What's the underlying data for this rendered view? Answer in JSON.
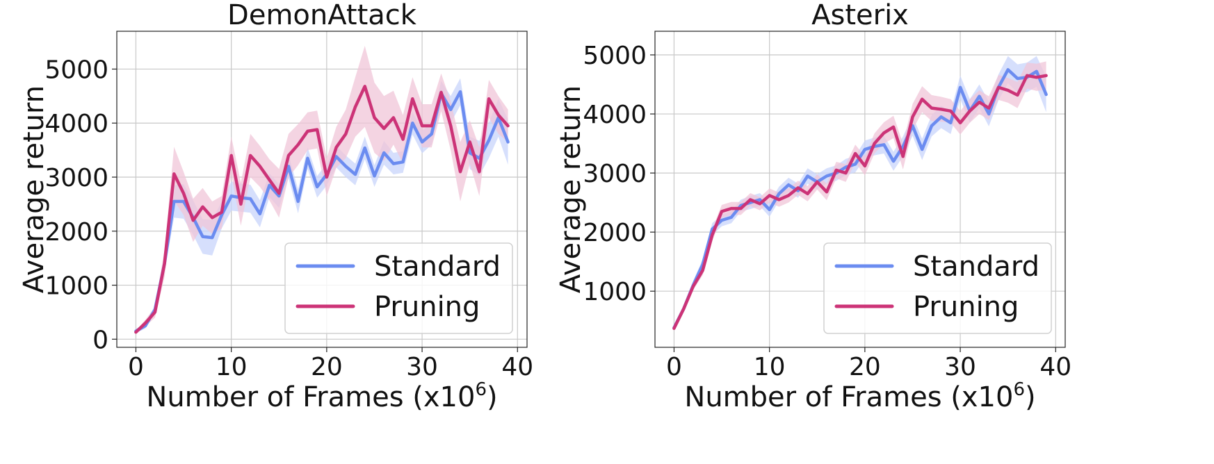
{
  "chart_data": [
    {
      "type": "line",
      "title": "DemonAttack",
      "xlabel": "Number of Frames (x10",
      "xlabel_sup": "6",
      "xlabel_end": ")",
      "ylabel": "Average return",
      "xlim": [
        -2,
        41
      ],
      "ylim": [
        -150,
        5700
      ],
      "xticks": [
        0,
        10,
        20,
        30,
        40
      ],
      "yticks": [
        0,
        1000,
        2000,
        3000,
        4000,
        5000
      ],
      "grid": true,
      "legend_position": "bottom-right",
      "x": [
        0,
        1,
        2,
        3,
        4,
        5,
        6,
        7,
        8,
        9,
        10,
        11,
        12,
        13,
        14,
        15,
        16,
        17,
        18,
        19,
        20,
        21,
        22,
        23,
        24,
        25,
        26,
        27,
        28,
        29,
        30,
        31,
        32,
        33,
        34,
        35,
        36,
        37,
        38,
        39
      ],
      "series": [
        {
          "name": "Standard",
          "color": "#6b8cf0",
          "band_color": "#c8d4fb",
          "values": [
            150,
            250,
            550,
            1400,
            2550,
            2550,
            2250,
            1900,
            1880,
            2300,
            2650,
            2620,
            2600,
            2320,
            2850,
            2650,
            3200,
            2550,
            3350,
            2820,
            3050,
            3380,
            3200,
            3050,
            3540,
            3020,
            3450,
            3250,
            3280,
            4000,
            3650,
            3800,
            4550,
            4250,
            4580,
            3450,
            3350,
            3680,
            4100,
            3650
          ],
          "band_half_width": [
            40,
            50,
            70,
            150,
            300,
            320,
            320,
            320,
            330,
            250,
            270,
            260,
            260,
            250,
            220,
            220,
            220,
            220,
            200,
            200,
            200,
            200,
            200,
            200,
            210,
            200,
            220,
            200,
            200,
            210,
            210,
            200,
            230,
            250,
            250,
            300,
            320,
            330,
            350,
            420
          ]
        },
        {
          "name": "Pruning",
          "color": "#cc3377",
          "band_color": "#f0c6d8",
          "values": [
            130,
            300,
            500,
            1400,
            3060,
            2700,
            2200,
            2450,
            2250,
            2350,
            3400,
            2500,
            3400,
            3200,
            2950,
            2700,
            3400,
            3600,
            3850,
            3880,
            3000,
            3550,
            3800,
            4300,
            4680,
            4100,
            3900,
            4100,
            3700,
            4450,
            3950,
            3950,
            4570,
            3950,
            3100,
            3650,
            3100,
            4450,
            4150,
            3950
          ],
          "band_half_width": [
            30,
            60,
            100,
            250,
            500,
            400,
            400,
            350,
            300,
            300,
            350,
            400,
            400,
            380,
            380,
            450,
            400,
            380,
            350,
            350,
            350,
            380,
            450,
            550,
            750,
            650,
            600,
            500,
            450,
            400,
            400,
            400,
            350,
            450,
            550,
            400,
            450,
            350,
            350,
            300
          ]
        }
      ]
    },
    {
      "type": "line",
      "title": "Asterix",
      "xlabel": "Number of Frames (x10",
      "xlabel_sup": "6",
      "xlabel_end": ")",
      "ylabel": "Average return",
      "xlim": [
        -2,
        41
      ],
      "ylim": [
        50,
        5400
      ],
      "xticks": [
        0,
        10,
        20,
        30,
        40
      ],
      "yticks": [
        1000,
        2000,
        3000,
        4000,
        5000
      ],
      "grid": true,
      "legend_position": "bottom-right",
      "x": [
        0,
        1,
        2,
        3,
        4,
        5,
        6,
        7,
        8,
        9,
        10,
        11,
        12,
        13,
        14,
        15,
        16,
        17,
        18,
        19,
        20,
        21,
        22,
        23,
        24,
        25,
        26,
        27,
        28,
        29,
        30,
        31,
        32,
        33,
        34,
        35,
        36,
        37,
        38,
        39
      ],
      "series": [
        {
          "name": "Standard",
          "color": "#6b8cf0",
          "band_color": "#c8d4fb",
          "values": [
            380,
            700,
            1100,
            1450,
            2050,
            2200,
            2250,
            2450,
            2500,
            2550,
            2380,
            2650,
            2800,
            2700,
            2950,
            2850,
            2950,
            3000,
            3100,
            3150,
            3400,
            3450,
            3480,
            3200,
            3450,
            3800,
            3400,
            3800,
            3950,
            3850,
            4450,
            4050,
            4300,
            4000,
            4450,
            4750,
            4600,
            4620,
            4720,
            4330
          ],
          "band_half_width": [
            30,
            50,
            70,
            90,
            100,
            100,
            100,
            100,
            110,
            110,
            120,
            120,
            120,
            120,
            130,
            130,
            130,
            130,
            140,
            140,
            150,
            150,
            150,
            160,
            170,
            170,
            180,
            180,
            190,
            190,
            200,
            200,
            200,
            210,
            220,
            230,
            240,
            250,
            260,
            300
          ]
        },
        {
          "name": "Pruning",
          "color": "#cc3377",
          "band_color": "#f0c6d8",
          "values": [
            370,
            700,
            1080,
            1350,
            1950,
            2350,
            2400,
            2400,
            2550,
            2480,
            2620,
            2550,
            2620,
            2750,
            2650,
            2850,
            2680,
            3050,
            3000,
            3330,
            3120,
            3500,
            3680,
            3780,
            3280,
            3950,
            4250,
            4100,
            4080,
            4050,
            3850,
            4050,
            4200,
            4100,
            4450,
            4400,
            4320,
            4650,
            4620,
            4650
          ],
          "band_half_width": [
            30,
            50,
            60,
            80,
            100,
            110,
            110,
            110,
            110,
            110,
            120,
            120,
            120,
            120,
            130,
            130,
            140,
            140,
            150,
            150,
            160,
            170,
            180,
            190,
            220,
            220,
            220,
            220,
            210,
            200,
            200,
            200,
            200,
            200,
            210,
            210,
            220,
            220,
            230,
            240
          ]
        }
      ]
    }
  ]
}
